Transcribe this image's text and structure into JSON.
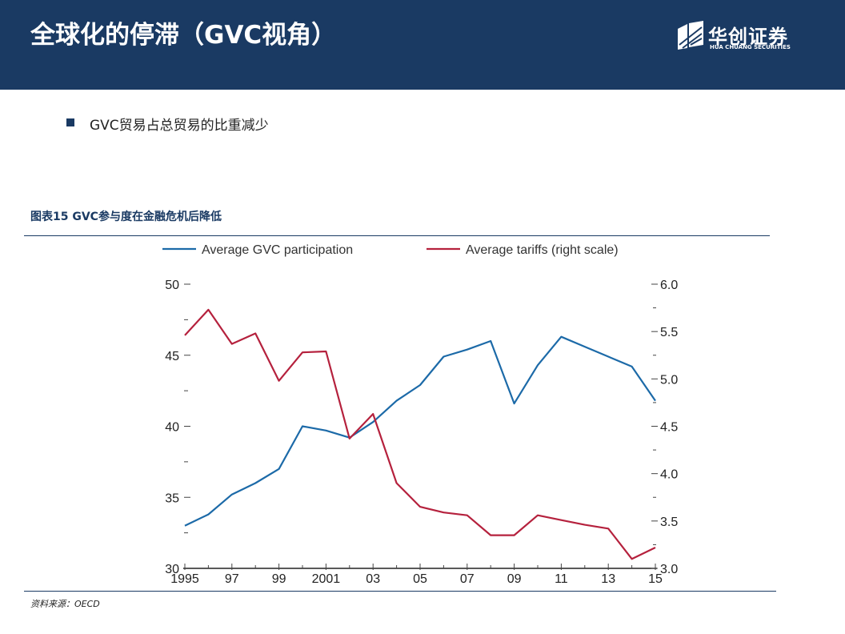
{
  "header": {
    "title": "全球化的停滞（GVC视角）",
    "logo_name": "华创证券",
    "logo_sub": "HUA CHUANG SECURITIES"
  },
  "bullet": {
    "text": "GVC贸易占总贸易的比重减少"
  },
  "figure": {
    "title": "图表15 GVC参与度在金融危机后降低"
  },
  "source": "资料来源：OECD",
  "colors": {
    "header_bg": "#1a3a63",
    "gvc_line": "#1c6aa8",
    "tariff_line": "#b5213d"
  },
  "chart_data": {
    "type": "line",
    "x": [
      1995,
      1996,
      1997,
      1998,
      1999,
      2000,
      2001,
      2002,
      2003,
      2004,
      2005,
      2006,
      2007,
      2008,
      2009,
      2010,
      2011,
      2012,
      2013,
      2014,
      2015
    ],
    "x_tick_labels": [
      "1995",
      "97",
      "99",
      "2001",
      "03",
      "05",
      "07",
      "09",
      "11",
      "13",
      "15"
    ],
    "left_axis": {
      "range": [
        30,
        50
      ],
      "tick_labels": [
        "50",
        "45",
        "40",
        "35",
        "30"
      ]
    },
    "right_axis": {
      "range": [
        3.0,
        6.0
      ],
      "tick_labels": [
        "6.0",
        "5.5",
        "5.0",
        "4.5",
        "4.0",
        "3.5",
        "3.0"
      ]
    },
    "series": [
      {
        "name": "Average GVC participation",
        "axis": "left",
        "values": [
          33.0,
          33.8,
          35.2,
          36.0,
          37.0,
          40.0,
          39.7,
          39.2,
          40.3,
          41.8,
          42.9,
          44.9,
          45.4,
          46.0,
          41.6,
          44.3,
          46.3,
          45.6,
          44.9,
          44.2,
          41.8
        ]
      },
      {
        "name": "Average tariffs (right scale)",
        "axis": "right",
        "values": [
          5.46,
          5.73,
          5.37,
          5.48,
          4.98,
          5.28,
          5.29,
          4.37,
          4.63,
          3.9,
          3.65,
          3.59,
          3.56,
          3.35,
          3.35,
          3.56,
          3.51,
          3.46,
          3.42,
          3.1,
          3.22
        ]
      }
    ]
  }
}
